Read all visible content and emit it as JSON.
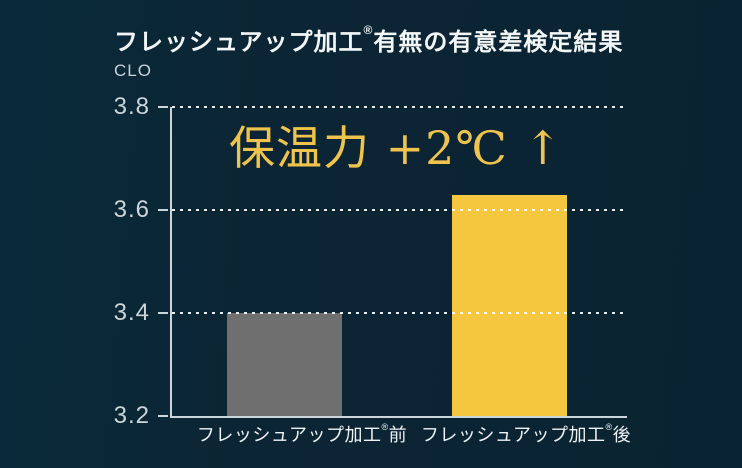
{
  "page": {
    "background": "#0b2433",
    "accent_gold": "#f0c34c",
    "axis_color": "#ccd5d9",
    "text_color": "#f3f6f7"
  },
  "header": {
    "title": {
      "prefix": "フレッシュアップ加工",
      "reg": "®",
      "suffix": "有無の有意差検定結果"
    },
    "unit_label": "CLO"
  },
  "annotation": {
    "text": "保温力 +2℃ ↑",
    "color": "#f0c34c"
  },
  "chart_data": {
    "type": "bar",
    "title": "フレッシュアップ加工®有無の有意差検定結果",
    "ylabel": "CLO",
    "xlabel": "",
    "categories": [
      "フレッシュアップ加工®前",
      "フレッシュアップ加工®後"
    ],
    "categories_parts": [
      {
        "prefix": "フレッシュアップ加工",
        "reg": "®",
        "suffix": "前"
      },
      {
        "prefix": "フレッシュアップ加工",
        "reg": "®",
        "suffix": "後"
      }
    ],
    "values": [
      3.4,
      3.63
    ],
    "bar_colors": [
      "#6f6f70",
      "#f5c73e"
    ],
    "ylim": [
      3.2,
      3.8
    ],
    "yticks": [
      3.8,
      3.6,
      3.4,
      3.2
    ],
    "grid": "horizontal-dotted",
    "legend": "none",
    "annotation": "保温力 +2℃ ↑"
  }
}
